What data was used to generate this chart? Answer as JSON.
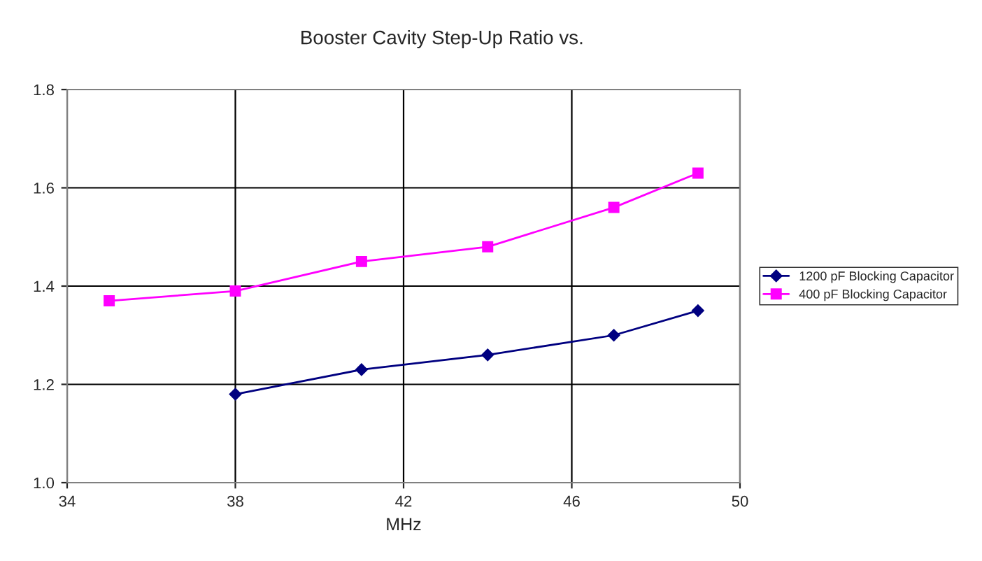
{
  "chart_data": {
    "type": "line",
    "title": "Booster Cavity Step-Up Ratio vs.",
    "xlabel": "MHz",
    "series": [
      {
        "name": "1200 pF Blocking Capacitor",
        "color": "#000080",
        "marker": "diamond",
        "x": [
          38,
          41,
          44,
          47,
          49
        ],
        "values": [
          1.18,
          1.23,
          1.26,
          1.3,
          1.35
        ]
      },
      {
        "name": "400 pF Blocking Capacitor",
        "color": "#ff00ff",
        "marker": "square",
        "x": [
          35,
          38,
          41,
          44,
          47,
          49
        ],
        "values": [
          1.37,
          1.39,
          1.45,
          1.48,
          1.56,
          1.63
        ]
      }
    ],
    "xlim": [
      34,
      50
    ],
    "xticks": [
      34,
      38,
      42,
      46,
      50
    ],
    "ylim": [
      1.0,
      1.8
    ],
    "yticks": [
      {
        "value": 1.0,
        "label": "1.0"
      },
      1.2,
      1.4,
      1.6,
      1.8
    ],
    "grid": true,
    "legend": "right",
    "line_style": "solid"
  }
}
